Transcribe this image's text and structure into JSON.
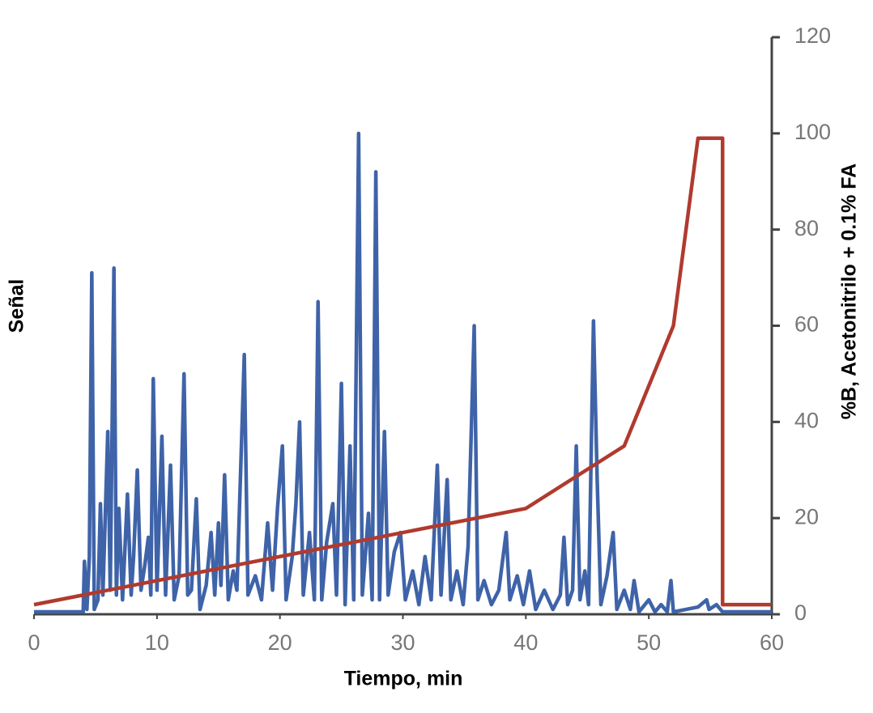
{
  "chart_data": {
    "type": "line",
    "x_label": "Tiempo, min",
    "y_label": "Señal",
    "y2_label": "%B, Acetonitrilo + 0.1% FA",
    "xlim": [
      0,
      60
    ],
    "xticks": [
      0,
      10,
      20,
      30,
      40,
      50,
      60
    ],
    "y2lim": [
      0,
      120
    ],
    "y2ticks": [
      0,
      20,
      40,
      60,
      80,
      100,
      120
    ],
    "series": [
      {
        "color": "#3f63a8",
        "axis": "y2",
        "x": [
          0,
          4.0,
          4.1,
          4.3,
          4.5,
          4.7,
          4.9,
          5.2,
          5.4,
          5.6,
          6.0,
          6.2,
          6.5,
          6.7,
          6.9,
          7.2,
          7.6,
          7.9,
          8.1,
          8.4,
          8.7,
          9.0,
          9.3,
          9.5,
          9.7,
          10.0,
          10.4,
          10.7,
          11.1,
          11.4,
          11.8,
          12.2,
          12.5,
          12.8,
          13.2,
          13.5,
          14.0,
          14.4,
          14.7,
          15.0,
          15.2,
          15.5,
          15.8,
          16.2,
          16.5,
          17.1,
          17.4,
          18.0,
          18.5,
          19.0,
          19.4,
          19.8,
          20.2,
          20.5,
          21.0,
          21.3,
          21.6,
          21.9,
          22.4,
          22.8,
          23.1,
          23.4,
          23.8,
          24.3,
          24.6,
          25.0,
          25.3,
          25.7,
          26.0,
          26.4,
          26.7,
          27.2,
          27.5,
          27.8,
          28.1,
          28.5,
          28.8,
          29.3,
          29.8,
          30.2,
          30.8,
          31.3,
          31.8,
          32.3,
          32.8,
          33.1,
          33.6,
          33.9,
          34.4,
          34.9,
          35.3,
          35.8,
          36.1,
          36.6,
          37.2,
          37.8,
          38.4,
          38.7,
          39.3,
          39.8,
          40.3,
          40.8,
          41.5,
          42.2,
          42.8,
          43.1,
          43.4,
          43.8,
          44.1,
          44.4,
          44.8,
          45.1,
          45.5,
          45.8,
          46.1,
          46.6,
          47.1,
          47.4,
          48.0,
          48.5,
          48.8,
          49.2,
          50.0,
          50.5,
          51.0,
          51.5,
          51.8,
          52.0,
          53.0,
          54.0,
          54.7,
          54.9,
          55.5,
          56,
          60
        ],
        "values": [
          0.5,
          0.5,
          11,
          1,
          12,
          71,
          1,
          3,
          23,
          4,
          38,
          5,
          72,
          4,
          22,
          3,
          25,
          4,
          12,
          30,
          5,
          10,
          16,
          4,
          49,
          5,
          37,
          4,
          31,
          3,
          8,
          50,
          4,
          5,
          24,
          1,
          6,
          17,
          4,
          19,
          6,
          29,
          3,
          9,
          5,
          54,
          4,
          8,
          3,
          19,
          5,
          22,
          35,
          3,
          12,
          23,
          40,
          4,
          17,
          3,
          65,
          3,
          15,
          23,
          4,
          48,
          2,
          35,
          3,
          100,
          4,
          21,
          3,
          92,
          3,
          38,
          4,
          13,
          17,
          3,
          9,
          2,
          12,
          3,
          31,
          4,
          28,
          3,
          9,
          2,
          14,
          60,
          3,
          7,
          2,
          5,
          17,
          3,
          8,
          2,
          9,
          1,
          5,
          1,
          4,
          16,
          2,
          5,
          35,
          3,
          9,
          2,
          61,
          28,
          2,
          8,
          17,
          1,
          5,
          1,
          7,
          0.5,
          3,
          0.5,
          2,
          0.5,
          7,
          0.5,
          1,
          1.5,
          3,
          1,
          2,
          0.5,
          0.5
        ]
      },
      {
        "color": "#b03a2e",
        "axis": "y2",
        "x": [
          0,
          40,
          48,
          52,
          54,
          56,
          56,
          60
        ],
        "values": [
          2,
          22,
          35,
          60,
          99,
          99,
          2,
          2
        ]
      }
    ]
  }
}
